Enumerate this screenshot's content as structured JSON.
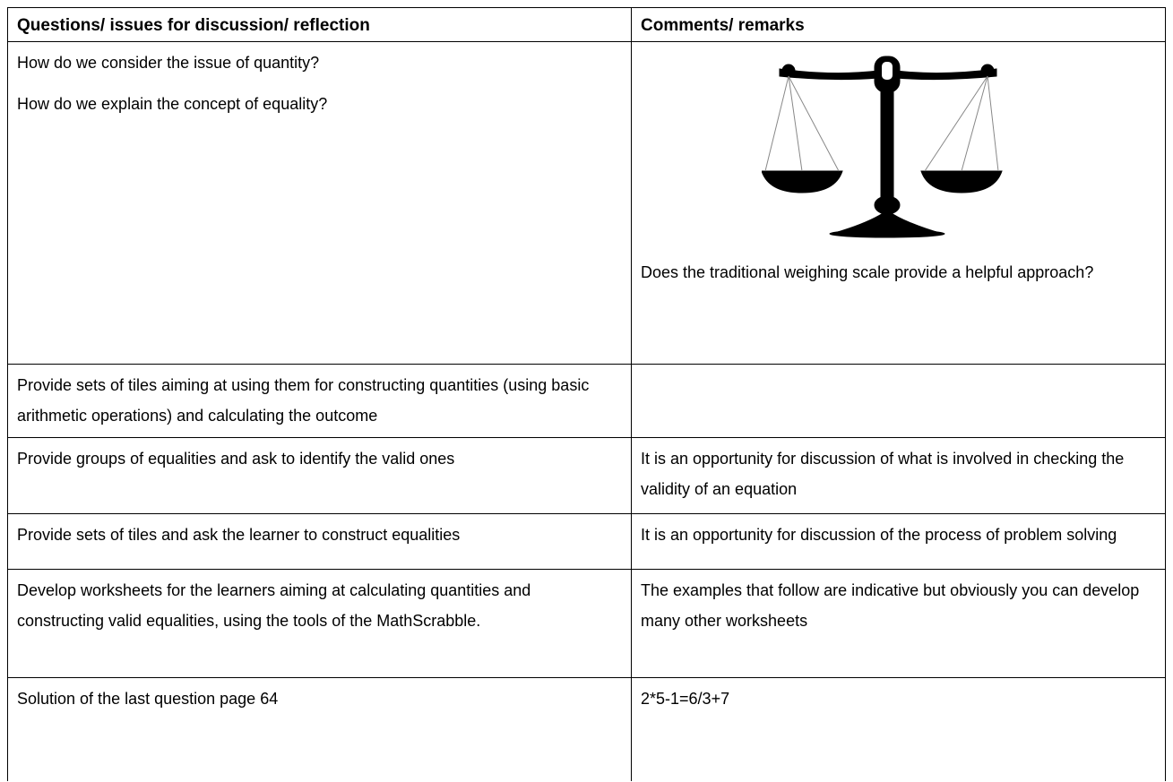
{
  "table": {
    "header": [
      "Questions/ issues for discussion/ reflection",
      "Comments/ remarks"
    ],
    "rows": [
      [
        [
          "How do we consider the issue of quantity?",
          "How do we explain the concept of equality?"
        ],
        [
          "Does the traditional weighing scale provide a helpful approach?"
        ]
      ],
      [
        [
          "Provide sets of tiles aiming at using them for constructing quantities (using basic arithmetic operations) and calculating the outcome"
        ],
        []
      ],
      [
        [
          "Provide groups of equalities and ask to identify the valid ones"
        ],
        [
          "It is an opportunity for discussion of what is involved in checking the validity of an equation"
        ]
      ],
      [
        [
          "Provide sets of tiles and ask the learner to construct equalities"
        ],
        [
          "It is an opportunity for discussion of the process of problem solving"
        ]
      ],
      [
        [
          "Develop worksheets for the learners aiming at calculating quantities and constructing valid equalities, using the tools of the MathScrabble."
        ],
        [
          "The examples that follow are indicative but obviously you can develop many other worksheets"
        ]
      ],
      [
        [
          "Solution of the last question page 64"
        ],
        [
          "2*5-1=6/3+7"
        ]
      ]
    ]
  }
}
